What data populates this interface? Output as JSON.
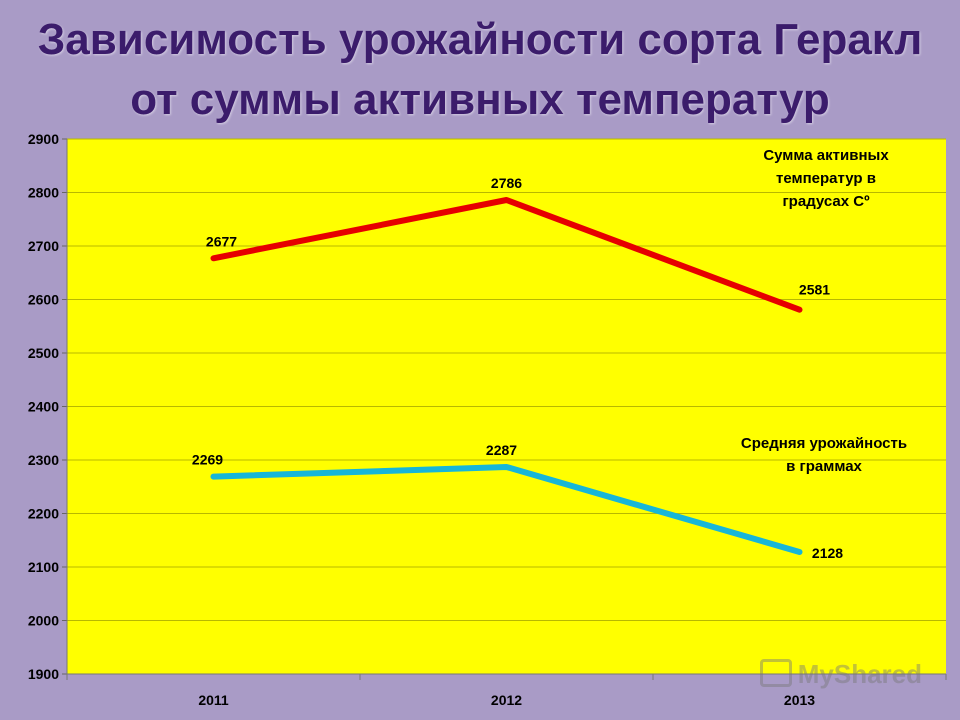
{
  "title_lines": [
    "Зависимость урожайности сорта Геракл",
    "от суммы активных температур"
  ],
  "watermark": "MyShared",
  "colors": {
    "background": "#a99bc6",
    "plot_area": "#ffff00",
    "series_temperature": "#e60000",
    "series_yield": "#17b6d8",
    "title": "#3b1c6b"
  },
  "chart_data": {
    "type": "line",
    "title": "Зависимость урожайности сорта Геракл от суммы активных температур",
    "categories": [
      "2011",
      "2012",
      "2013"
    ],
    "ylim": [
      1900,
      2900
    ],
    "yticks": [
      1900,
      2000,
      2100,
      2200,
      2300,
      2400,
      2500,
      2600,
      2700,
      2800,
      2900
    ],
    "grid": true,
    "series": [
      {
        "name": "Сумма активных температур в градусах Cº",
        "label_lines": [
          "Сумма активных",
          "температур в",
          "градусах Cº"
        ],
        "values": [
          2677,
          2786,
          2581
        ]
      },
      {
        "name": "Средняя урожайность в граммах",
        "label_lines": [
          "Средняя урожайность",
          "в граммах"
        ],
        "values": [
          2269,
          2287,
          2128
        ]
      }
    ]
  }
}
